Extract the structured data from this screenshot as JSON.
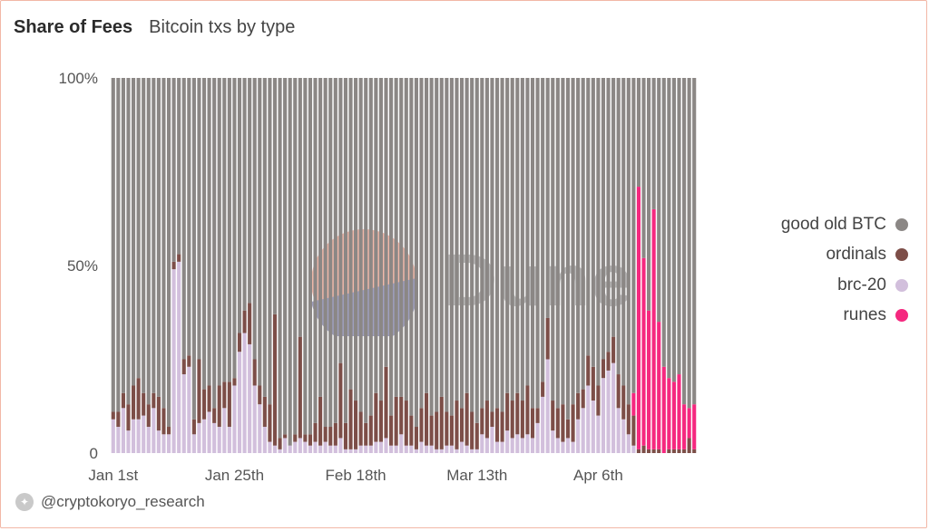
{
  "header": {
    "title": "Share of Fees",
    "subtitle": "Bitcoin txs by type"
  },
  "watermark": {
    "text": "Dune"
  },
  "footer": {
    "icon": "dune-logo-icon",
    "text": "@cryptokoryo_research"
  },
  "colors": {
    "good_old_btc": "#8b8785",
    "ordinals": "#7d4e48",
    "brc20": "#d2bfdc",
    "runes": "#f5287f"
  },
  "chart_data": {
    "type": "bar",
    "stacked": true,
    "title": "Share of Fees",
    "subtitle": "Bitcoin txs by type",
    "y_axis": {
      "ticks": [
        "0",
        "50%",
        "100%"
      ],
      "ylim": [
        0,
        100
      ],
      "unit": "percent"
    },
    "x_axis": {
      "ticks": [
        {
          "label": "Jan 1st",
          "index": 0
        },
        {
          "label": "Jan 25th",
          "index": 24
        },
        {
          "label": "Feb 18th",
          "index": 48
        },
        {
          "label": "Mar 13th",
          "index": 72
        },
        {
          "label": "Apr 6th",
          "index": 96
        }
      ]
    },
    "legend": [
      {
        "name": "good old BTC",
        "color": "#8b8785"
      },
      {
        "name": "ordinals",
        "color": "#7d4e48"
      },
      {
        "name": "brc-20",
        "color": "#d2bfdc"
      },
      {
        "name": "runes",
        "color": "#f5287f"
      }
    ],
    "series": [
      {
        "name": "brc-20",
        "values": [
          9,
          7,
          12,
          6,
          9,
          9,
          10,
          7,
          12,
          6,
          5,
          5,
          49,
          51,
          21,
          23,
          5,
          8,
          9,
          11,
          8,
          7,
          12,
          7,
          18,
          27,
          32,
          29,
          18,
          13,
          7,
          3,
          2,
          1,
          4,
          2,
          3,
          4,
          3,
          2,
          3,
          2,
          3,
          2,
          2,
          4,
          1,
          1,
          1,
          2,
          2,
          2,
          3,
          3,
          4,
          2,
          2,
          5,
          2,
          2,
          1,
          3,
          2,
          2,
          1,
          1,
          2,
          2,
          1,
          3,
          2,
          1,
          1,
          5,
          4,
          7,
          3,
          3,
          6,
          4,
          5,
          4,
          5,
          4,
          8,
          15,
          25,
          6,
          4,
          3,
          4,
          3,
          9,
          12,
          18,
          14,
          10,
          20,
          22,
          24,
          12,
          9,
          5,
          2,
          0,
          0,
          0,
          0,
          0,
          0,
          0,
          0,
          0,
          0,
          0,
          0
        ]
      },
      {
        "name": "ordinals",
        "values": [
          2,
          4,
          4,
          7,
          9,
          11,
          6,
          6,
          4,
          9,
          7,
          2,
          2,
          2,
          4,
          3,
          4,
          17,
          8,
          7,
          4,
          11,
          7,
          12,
          2,
          5,
          6,
          11,
          7,
          5,
          8,
          10,
          35,
          3,
          1,
          0,
          2,
          27,
          2,
          3,
          5,
          13,
          4,
          5,
          6,
          20,
          7,
          16,
          13,
          9,
          6,
          8,
          13,
          11,
          19,
          8,
          13,
          10,
          12,
          8,
          6,
          9,
          14,
          8,
          10,
          14,
          9,
          8,
          13,
          9,
          14,
          10,
          7,
          7,
          10,
          4,
          9,
          8,
          10,
          10,
          11,
          10,
          13,
          8,
          4,
          4,
          11,
          8,
          8,
          10,
          5,
          10,
          7,
          5,
          8,
          9,
          8,
          5,
          5,
          7,
          9,
          9,
          8,
          8,
          1,
          2,
          1,
          1,
          1,
          0,
          1,
          1,
          1,
          1,
          4,
          1
        ]
      },
      {
        "name": "runes",
        "values": [
          0,
          0,
          0,
          0,
          0,
          0,
          0,
          0,
          0,
          0,
          0,
          0,
          0,
          0,
          0,
          0,
          0,
          0,
          0,
          0,
          0,
          0,
          0,
          0,
          0,
          0,
          0,
          0,
          0,
          0,
          0,
          0,
          0,
          0,
          0,
          0,
          0,
          0,
          0,
          0,
          0,
          0,
          0,
          0,
          0,
          0,
          0,
          0,
          0,
          0,
          0,
          0,
          0,
          0,
          0,
          0,
          0,
          0,
          0,
          0,
          0,
          0,
          0,
          0,
          0,
          0,
          0,
          0,
          0,
          0,
          0,
          0,
          0,
          0,
          0,
          0,
          0,
          0,
          0,
          0,
          0,
          0,
          0,
          0,
          0,
          0,
          0,
          0,
          0,
          0,
          0,
          0,
          0,
          0,
          0,
          0,
          0,
          0,
          0,
          0,
          0,
          0,
          0,
          6,
          70,
          50,
          37,
          64,
          34,
          23,
          19,
          18,
          20,
          12,
          8,
          12
        ]
      },
      {
        "name": "good old BTC",
        "values": [
          89,
          89,
          84,
          87,
          82,
          80,
          84,
          87,
          84,
          85,
          88,
          93,
          49,
          47,
          75,
          74,
          91,
          75,
          83,
          82,
          88,
          82,
          81,
          81,
          80,
          68,
          62,
          60,
          75,
          82,
          85,
          87,
          63,
          96,
          95,
          98,
          95,
          69,
          95,
          95,
          92,
          85,
          93,
          93,
          92,
          76,
          92,
          83,
          86,
          89,
          92,
          90,
          84,
          86,
          77,
          90,
          85,
          85,
          86,
          90,
          93,
          88,
          84,
          90,
          89,
          85,
          89,
          90,
          86,
          88,
          84,
          89,
          92,
          88,
          86,
          89,
          88,
          89,
          84,
          86,
          84,
          86,
          82,
          88,
          88,
          81,
          64,
          86,
          88,
          87,
          91,
          87,
          84,
          83,
          74,
          77,
          82,
          75,
          73,
          69,
          79,
          82,
          87,
          84,
          29,
          48,
          62,
          35,
          65,
          77,
          80,
          81,
          79,
          87,
          88,
          87
        ]
      }
    ]
  }
}
